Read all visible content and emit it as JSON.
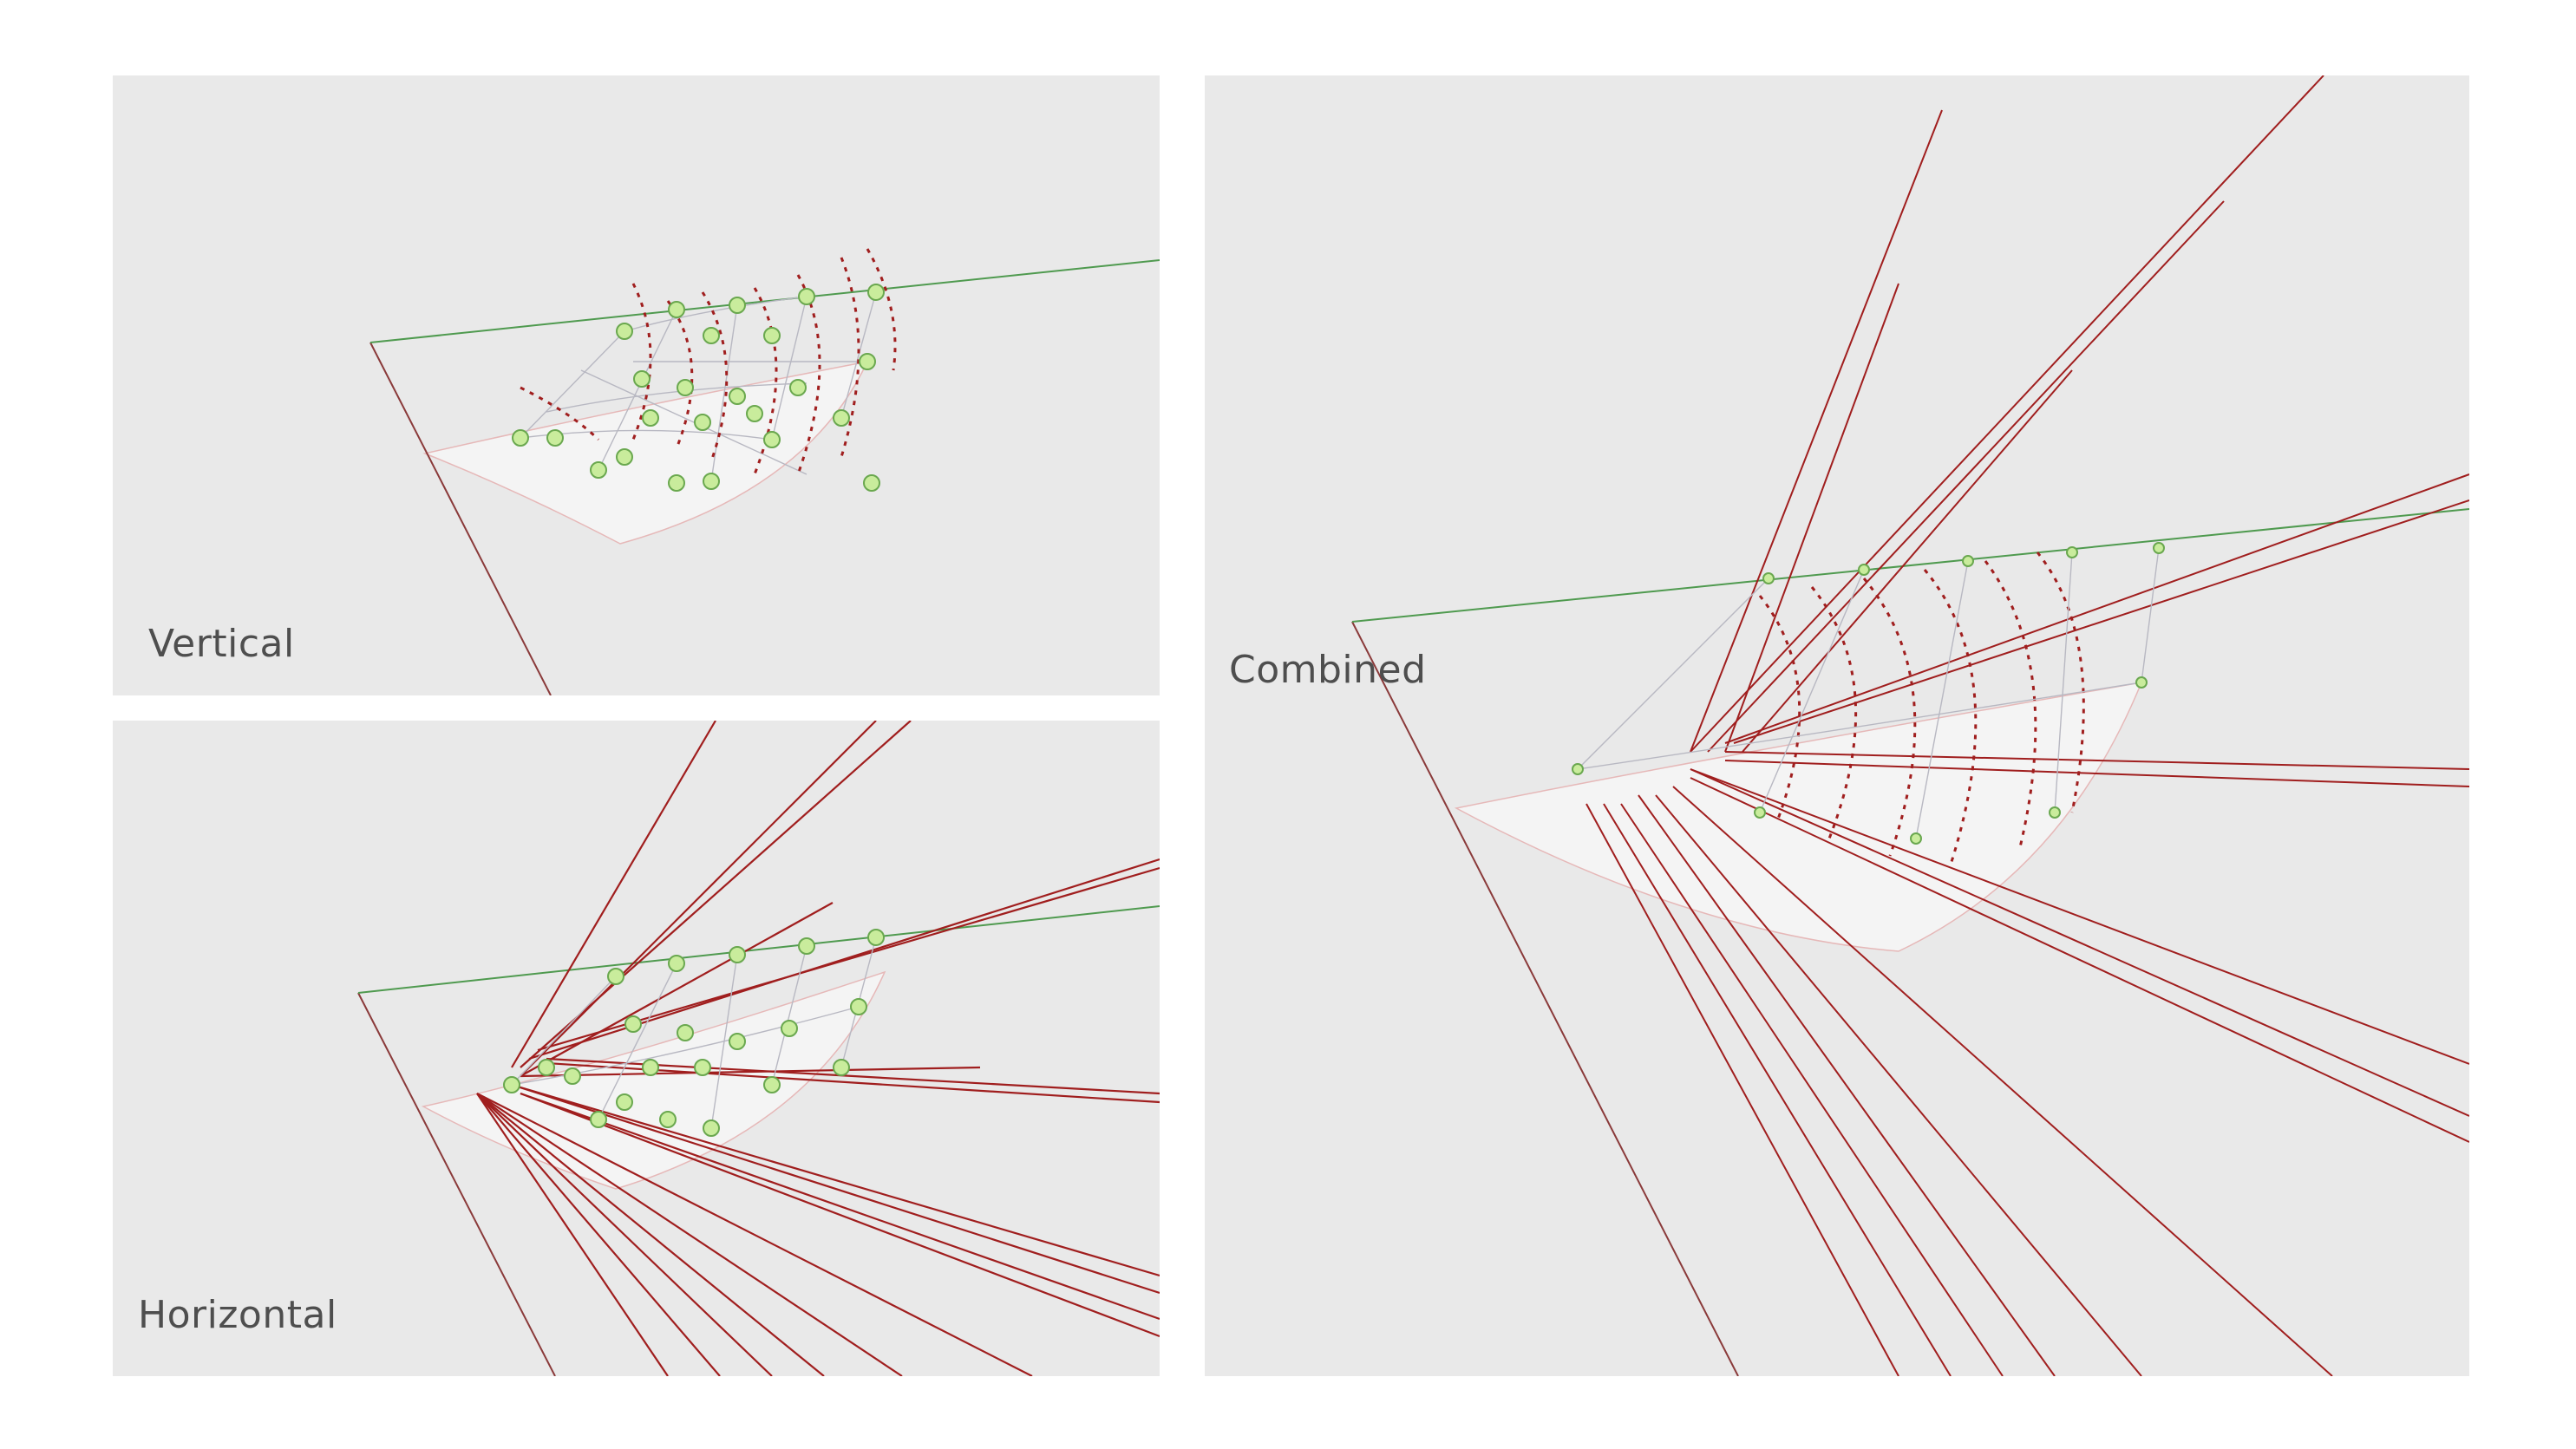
{
  "panels": {
    "vertical": {
      "label": "Vertical"
    },
    "horizontal": {
      "label": "Horizontal"
    },
    "combined": {
      "label": "Combined"
    }
  },
  "colors": {
    "background": "#e9e9e9",
    "surface": "#f4f4f4",
    "frame_line": "#8a3a3a",
    "top_edge": "#4f9a4f",
    "member": "#a01e1e",
    "grid_line": "#b8b8c2",
    "node_fill": "#c9ec9c",
    "node_stroke": "#6aa84f",
    "cross": "#8b0000"
  },
  "icons": {
    "node": "green-x-node-icon",
    "point": "red-x-marker-icon"
  }
}
